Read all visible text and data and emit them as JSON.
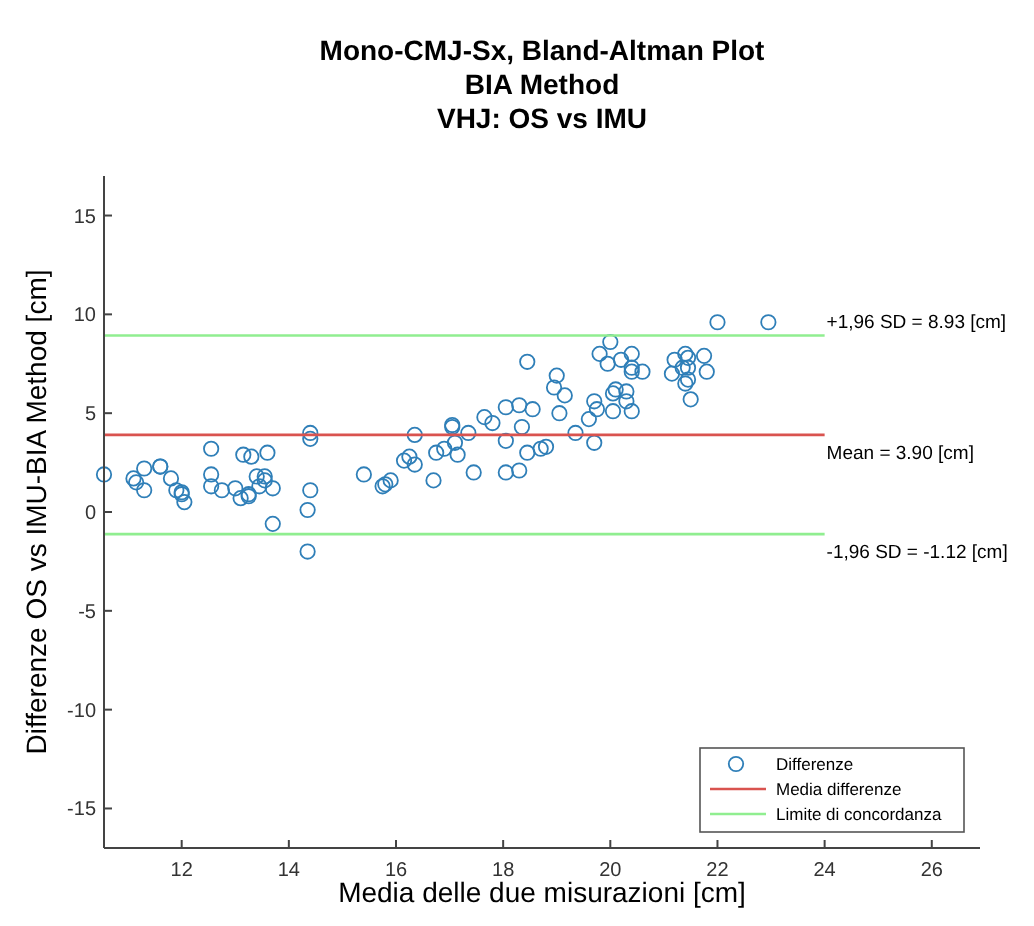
{
  "chart_data": {
    "type": "scatter",
    "title": "Mono-CMJ-Sx, Bland-Altman Plot\nBIA Method\nVHJ: OS vs IMU",
    "xlabel": "Media delle due misurazioni [cm]",
    "ylabel": "Differenze OS vs IMU-BIA Method [cm]",
    "xlim": [
      10.55,
      26.9
    ],
    "ylim": [
      -17,
      17
    ],
    "xticks": [
      12,
      14,
      16,
      18,
      20,
      22,
      24,
      26
    ],
    "yticks": [
      -15,
      -10,
      -5,
      0,
      5,
      10,
      15
    ],
    "grid": false,
    "legend": "bottom right",
    "marker": "circle",
    "series": [
      {
        "name": "Differenze",
        "color": "#2f7fb8",
        "x": [
          10.55,
          11.1,
          11.15,
          11.3,
          11.3,
          11.6,
          11.6,
          11.8,
          11.9,
          12.0,
          12.05,
          12.0,
          12.55,
          12.55,
          12.55,
          12.75,
          13.0,
          13.1,
          13.15,
          13.25,
          13.25,
          13.3,
          13.4,
          13.45,
          13.55,
          13.55,
          13.6,
          13.7,
          13.7,
          14.35,
          14.35,
          14.4,
          14.4,
          14.4,
          15.4,
          15.75,
          15.8,
          15.9,
          16.15,
          16.25,
          16.35,
          16.35,
          16.7,
          16.75,
          16.9,
          17.05,
          17.05,
          17.1,
          17.15,
          17.35,
          17.45,
          17.65,
          17.8,
          18.05,
          18.05,
          18.05,
          18.3,
          18.3,
          18.35,
          18.45,
          18.45,
          18.55,
          18.7,
          18.8,
          18.95,
          19.0,
          19.05,
          19.15,
          19.35,
          19.6,
          19.7,
          19.7,
          19.75,
          19.8,
          19.95,
          20.0,
          20.05,
          20.05,
          20.1,
          20.2,
          20.3,
          20.3,
          20.4,
          20.4,
          20.4,
          20.4,
          20.6,
          21.15,
          21.2,
          21.35,
          21.4,
          21.4,
          21.45,
          21.45,
          21.45,
          21.5,
          21.75,
          21.8,
          22.0,
          22.95
        ],
        "values": [
          1.9,
          1.7,
          1.5,
          1.1,
          2.2,
          2.3,
          2.3,
          1.7,
          1.1,
          1.0,
          0.5,
          0.9,
          3.2,
          1.9,
          1.3,
          1.1,
          1.2,
          0.7,
          2.9,
          0.8,
          0.9,
          2.8,
          1.8,
          1.3,
          1.6,
          1.8,
          3.0,
          1.2,
          -0.6,
          0.1,
          -2.0,
          1.1,
          4.0,
          3.7,
          1.9,
          1.3,
          1.4,
          1.6,
          2.6,
          2.8,
          3.9,
          2.4,
          1.6,
          3.0,
          3.2,
          4.4,
          4.3,
          3.5,
          2.9,
          4.0,
          2.0,
          4.8,
          4.5,
          3.6,
          5.3,
          2.0,
          2.1,
          5.4,
          4.3,
          7.6,
          3.0,
          5.2,
          3.2,
          3.3,
          6.3,
          6.9,
          5.0,
          5.9,
          4.0,
          4.7,
          3.5,
          5.6,
          5.2,
          8.0,
          7.5,
          8.6,
          6.0,
          5.1,
          6.2,
          7.7,
          6.1,
          5.6,
          8.0,
          7.3,
          7.1,
          5.1,
          7.1,
          7.0,
          7.7,
          7.3,
          8.0,
          6.5,
          7.8,
          6.7,
          7.3,
          5.7,
          7.9,
          7.1,
          9.6,
          9.6
        ]
      },
      {
        "name": "Media differenze",
        "type": "line",
        "marker": "none",
        "color": "#d9534f",
        "x": [
          10.55,
          24
        ],
        "values": [
          3.9,
          3.9
        ]
      },
      {
        "name": "Limite di concordanza",
        "type": "line",
        "marker": "none",
        "color": "#90ee90",
        "x": [
          10.55,
          24
        ],
        "values": [
          8.93,
          8.93
        ]
      },
      {
        "type": "line",
        "marker": "none",
        "color": "#90ee90",
        "x": [
          10.55,
          24
        ],
        "values": [
          -1.12,
          -1.12
        ]
      }
    ],
    "annotations": [
      "+1,96 SD = 8.93 [cm]",
      "Mean = 3.90 [cm]",
      "-1,96 SD = -1.12 [cm]"
    ]
  }
}
